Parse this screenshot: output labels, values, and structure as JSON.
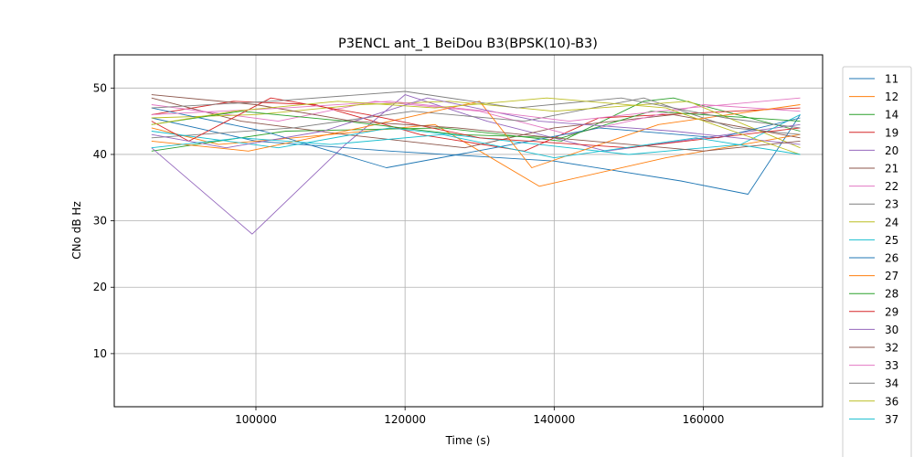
{
  "chart_data": {
    "type": "line",
    "title": "P3ENCL ant_1 BeiDou B3(BPSK(10)-B3)",
    "xlabel": "Time (s)",
    "ylabel": "CNo dB Hz",
    "xlim": [
      81000,
      176000
    ],
    "ylim": [
      2,
      55
    ],
    "xticks": [
      100000,
      120000,
      140000,
      160000
    ],
    "yticks": [
      10,
      20,
      30,
      40,
      50
    ],
    "grid": true,
    "legend_position": "right-outside",
    "series": [
      {
        "name": "11",
        "color": "#1f77b4",
        "x": [
          86000,
          100000,
          118000,
          140000,
          157000,
          166000,
          173000
        ],
        "y": [
          45.5,
          42.0,
          40.5,
          39.0,
          36.0,
          34.0,
          46.0
        ]
      },
      {
        "name": "12",
        "color": "#ff7f0e",
        "x": [
          86000,
          95000,
          110000,
          124000,
          138000,
          155000,
          173000
        ],
        "y": [
          44.0,
          41.5,
          43.0,
          44.5,
          35.2,
          39.5,
          43.0
        ]
      },
      {
        "name": "14",
        "color": "#2ca02c",
        "x": [
          86000,
          104000,
          125000,
          141000,
          152000,
          156000,
          173000
        ],
        "y": [
          40.5,
          43.5,
          44.0,
          42.0,
          48.0,
          48.5,
          43.5
        ]
      },
      {
        "name": "19",
        "color": "#d62728",
        "x": [
          86000,
          97000,
          108000,
          122000,
          136000,
          146000,
          173000
        ],
        "y": [
          46.0,
          48.0,
          47.5,
          43.0,
          40.5,
          45.5,
          47.0
        ]
      },
      {
        "name": "20",
        "color": "#9467bd",
        "x": [
          86000,
          99500,
          112000,
          120000,
          131000,
          147000,
          173000
        ],
        "y": [
          41.0,
          28.0,
          41.5,
          49.0,
          45.0,
          40.5,
          44.5
        ]
      },
      {
        "name": "21",
        "color": "#8c564b",
        "x": [
          86000,
          98000,
          112000,
          128000,
          140000,
          156000,
          173000
        ],
        "y": [
          48.5,
          45.0,
          43.0,
          41.0,
          44.0,
          46.0,
          42.5
        ]
      },
      {
        "name": "22",
        "color": "#e377c2",
        "x": [
          86000,
          103000,
          116000,
          130000,
          142000,
          160000,
          173000
        ],
        "y": [
          47.5,
          45.0,
          48.0,
          46.5,
          43.0,
          47.5,
          46.5
        ]
      },
      {
        "name": "23",
        "color": "#7f7f7f",
        "x": [
          86000,
          105000,
          121000,
          136000,
          152000,
          164000,
          173000
        ],
        "y": [
          42.5,
          44.0,
          46.5,
          45.0,
          48.5,
          44.0,
          43.0
        ]
      },
      {
        "name": "24",
        "color": "#bcbd22",
        "x": [
          86000,
          100000,
          114000,
          126000,
          140000,
          158000,
          173000
        ],
        "y": [
          45.5,
          46.0,
          47.5,
          48.0,
          46.5,
          48.0,
          41.0
        ]
      },
      {
        "name": "25",
        "color": "#17becf",
        "x": [
          86000,
          103000,
          118000,
          134000,
          150000,
          165000,
          173000
        ],
        "y": [
          43.5,
          41.0,
          44.0,
          42.0,
          40.0,
          41.5,
          46.0
        ]
      },
      {
        "name": "26",
        "color": "#1f77b4",
        "x": [
          86000,
          101000,
          117500,
          132000,
          146000,
          162000,
          173000
        ],
        "y": [
          47.0,
          43.5,
          38.0,
          41.0,
          44.0,
          42.5,
          45.5
        ]
      },
      {
        "name": "27",
        "color": "#ff7f0e",
        "x": [
          86000,
          99000,
          114000,
          130000,
          137000,
          154000,
          173000
        ],
        "y": [
          42.0,
          40.5,
          44.0,
          48.0,
          38.0,
          44.5,
          47.5
        ]
      },
      {
        "name": "28",
        "color": "#2ca02c",
        "x": [
          86000,
          98000,
          112000,
          127000,
          141000,
          153000,
          173000
        ],
        "y": [
          44.5,
          46.5,
          45.0,
          43.0,
          42.5,
          46.5,
          45.0
        ]
      },
      {
        "name": "29",
        "color": "#d62728",
        "x": [
          86000,
          91000,
          102000,
          115000,
          130000,
          150000,
          173000
        ],
        "y": [
          45.0,
          42.0,
          48.5,
          46.0,
          42.5,
          41.0,
          44.0
        ]
      },
      {
        "name": "30",
        "color": "#9467bd",
        "x": [
          86000,
          96000,
          109000,
          123000,
          138000,
          156000,
          173000
        ],
        "y": [
          43.0,
          41.0,
          43.5,
          48.5,
          45.0,
          43.5,
          41.5
        ]
      },
      {
        "name": "32",
        "color": "#8c564b",
        "x": [
          86000,
          100000,
          113000,
          127000,
          140000,
          160000,
          173000
        ],
        "y": [
          49.0,
          47.5,
          45.0,
          44.0,
          42.5,
          40.5,
          42.0
        ]
      },
      {
        "name": "33",
        "color": "#e377c2",
        "x": [
          86000,
          104000,
          118000,
          131000,
          142000,
          158000,
          173000
        ],
        "y": [
          46.0,
          47.0,
          48.0,
          46.5,
          45.0,
          47.0,
          48.5
        ]
      },
      {
        "name": "34",
        "color": "#7f7f7f",
        "x": [
          86000,
          102000,
          120000,
          135000,
          149000,
          163000,
          173000
        ],
        "y": [
          47.0,
          48.0,
          49.5,
          47.0,
          48.5,
          45.5,
          44.0
        ]
      },
      {
        "name": "36",
        "color": "#bcbd22",
        "x": [
          86000,
          97000,
          111000,
          124000,
          139000,
          155000,
          173000
        ],
        "y": [
          44.5,
          46.5,
          48.0,
          47.0,
          48.5,
          47.0,
          40.0
        ]
      },
      {
        "name": "37",
        "color": "#17becf",
        "x": [
          86000,
          98000,
          110000,
          125000,
          140000,
          159000,
          173000
        ],
        "y": [
          41.0,
          42.5,
          41.5,
          43.0,
          39.5,
          42.5,
          40.0
        ]
      }
    ]
  }
}
